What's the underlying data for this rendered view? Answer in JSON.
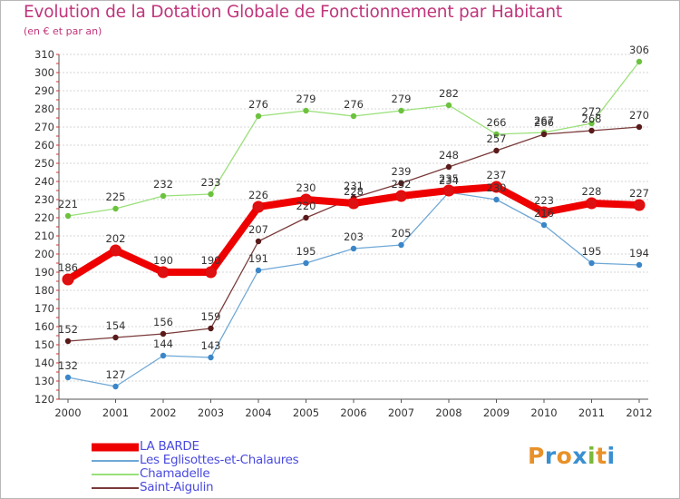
{
  "title": "Evolution de la Dotation Globale de Fonctionnement par Habitant",
  "subtitle": "(en € et par an)",
  "logo": {
    "letters": [
      "P",
      "r",
      "o",
      "x",
      "i",
      "t",
      "i"
    ],
    "colors": [
      "#e8912a",
      "#3a8fd0",
      "#e8912a",
      "#3a8fd0",
      "#7ab83a",
      "#e8912a",
      "#3a8fd0"
    ]
  },
  "chart_data": {
    "type": "line",
    "title": "Evolution de la Dotation Globale de Fonctionnement par Habitant",
    "subtitle": "(en € et par an)",
    "xlabel": "",
    "ylabel": "",
    "x": [
      "2000",
      "2001",
      "2002",
      "2003",
      "2004",
      "2005",
      "2006",
      "2007",
      "2008",
      "2009",
      "2010",
      "2011",
      "2012"
    ],
    "ylim": [
      120,
      310
    ],
    "yticks": [
      120,
      130,
      140,
      150,
      160,
      170,
      180,
      190,
      200,
      210,
      220,
      230,
      240,
      250,
      260,
      270,
      280,
      290,
      300,
      310
    ],
    "grid": "horizontal",
    "legend_position": "bottom-left",
    "series": [
      {
        "name": "LA BARDE",
        "color": "#ee0000",
        "point_color": "#dd1111",
        "width": "bold",
        "values": [
          186,
          202,
          190,
          190,
          226,
          230,
          228,
          232,
          235,
          237,
          223,
          228,
          227
        ]
      },
      {
        "name": "Les Eglisottes-et-Chalaures",
        "color": "#6fa8d6",
        "point_color": "#3a86c8",
        "width": "thin",
        "values": [
          132,
          127,
          144,
          143,
          191,
          195,
          203,
          205,
          234,
          230,
          216,
          195,
          194
        ]
      },
      {
        "name": "Chamadelle",
        "color": "#9ae07a",
        "point_color": "#6cc23e",
        "width": "thin",
        "values": [
          221,
          225,
          232,
          233,
          276,
          279,
          276,
          279,
          282,
          266,
          267,
          272,
          306
        ]
      },
      {
        "name": "Saint-Aigulin",
        "color": "#7a3a3a",
        "point_color": "#5a1a1a",
        "width": "thin",
        "values": [
          152,
          154,
          156,
          159,
          207,
          220,
          231,
          239,
          248,
          257,
          266,
          268,
          270
        ]
      }
    ]
  }
}
